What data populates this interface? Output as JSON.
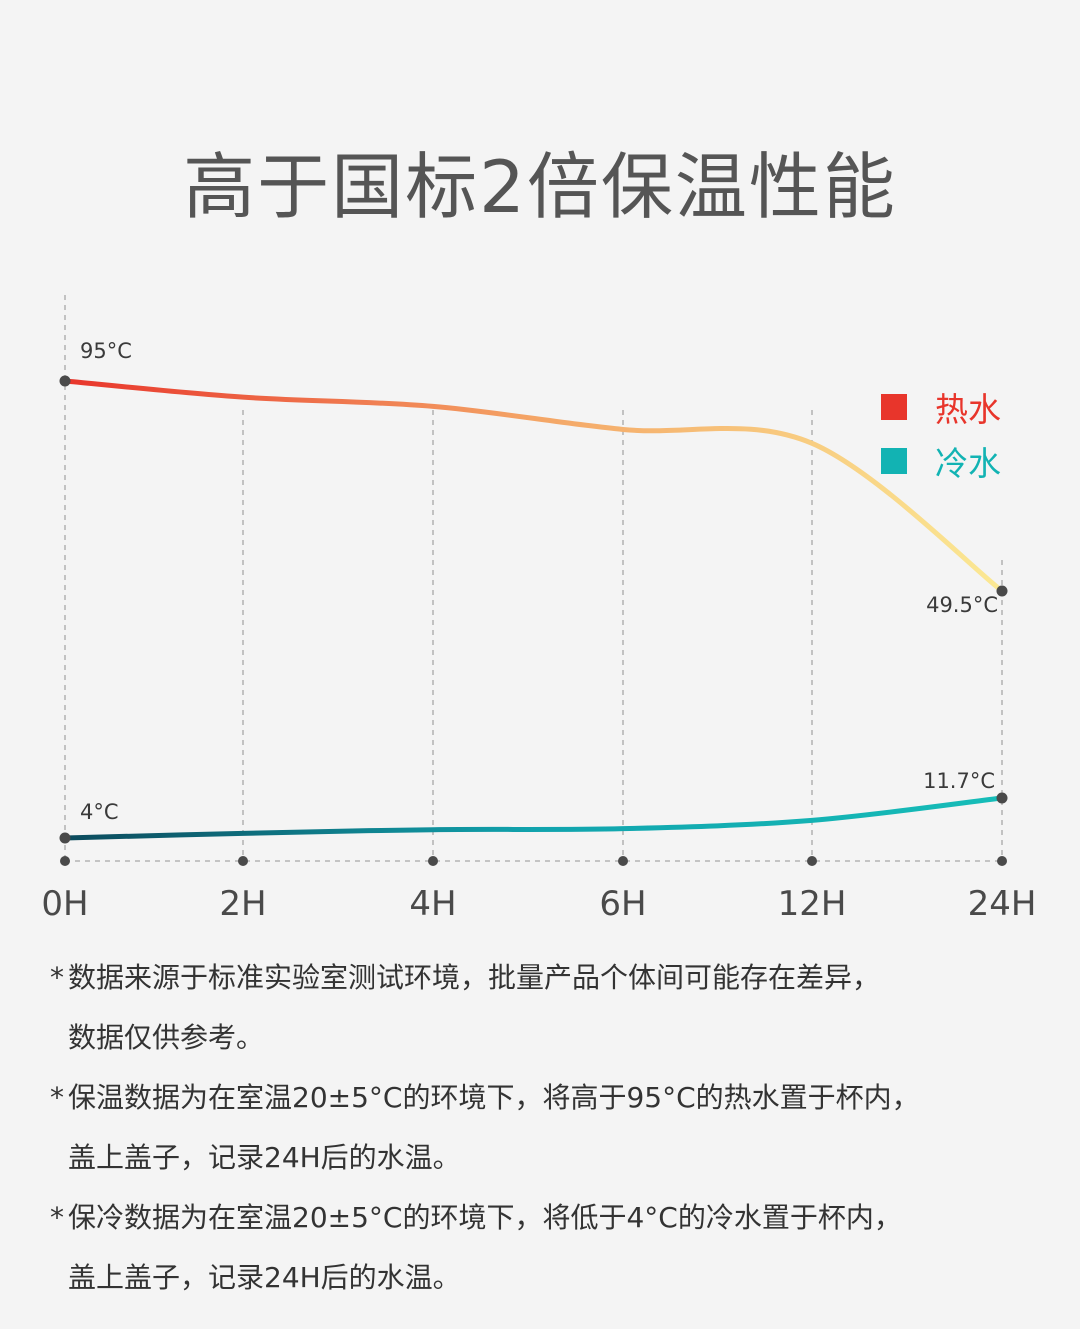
{
  "title": "高于国标2倍保温性能",
  "legend": {
    "hot": {
      "label": "热水",
      "color": "#e8352b"
    },
    "cold": {
      "label": "冷水",
      "color": "#12b3b3"
    }
  },
  "chart_data": {
    "type": "line",
    "categories": [
      "0H",
      "2H",
      "4H",
      "6H",
      "12H",
      "24H"
    ],
    "series": [
      {
        "name": "热水",
        "values": [
          95,
          91.5,
          89.5,
          84.5,
          81.5,
          49.5
        ],
        "gradient": [
          "#e8352b",
          "#f4a566",
          "#fbe994"
        ],
        "labels": {
          "0": "95°C",
          "5": "49.5°C"
        }
      },
      {
        "name": "冷水",
        "values": [
          4,
          4.9,
          5.6,
          5.8,
          7.4,
          11.7
        ],
        "gradient": [
          "#0c4a5c",
          "#11a3ad",
          "#16bdb8"
        ],
        "labels": {
          "0": "4°C",
          "5": "11.7°C"
        }
      }
    ],
    "grid": true
  },
  "notes": [
    {
      "star": "*",
      "lines": [
        "数据来源于标准实验室测试环境，批量产品个体间可能存在差异，",
        "数据仅供参考。"
      ]
    },
    {
      "star": "*",
      "lines": [
        "保温数据为在室温20±5°C的环境下，将高于95°C的热水置于杯内，",
        "盖上盖子，记录24H后的水温。"
      ]
    },
    {
      "star": "*",
      "lines": [
        "保冷数据为在室温20±5°C的环境下，将低于4°C的冷水置于杯内，",
        "盖上盖子，记录24H后的水温。"
      ]
    }
  ]
}
